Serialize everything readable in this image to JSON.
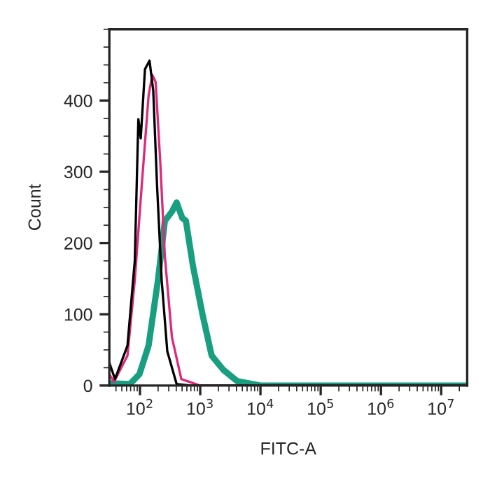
{
  "chart_data": {
    "type": "line",
    "xlabel": "FITC-A",
    "ylabel": "Count",
    "log": "x",
    "grid": false,
    "legend": false,
    "xlim": [
      31,
      27000000
    ],
    "ylim": [
      0,
      500
    ],
    "xticks": [
      {
        "value": 100,
        "label": "10$^{2}$"
      },
      {
        "value": 1000,
        "label": "10$^{3}$"
      },
      {
        "value": 10000,
        "label": "10$^{4}$"
      },
      {
        "value": 100000,
        "label": "10$^{5}$"
      },
      {
        "value": 1000000,
        "label": "10$^{6}$"
      },
      {
        "value": 10000000,
        "label": "10$^{7}$"
      }
    ],
    "yticks": [
      0,
      100,
      200,
      300,
      400
    ],
    "series": [
      {
        "color": "#1a9e80",
        "x": [
          31,
          68,
          98,
          139,
          199,
          259,
          339,
          406,
          504,
          579,
          757,
          1084,
          1549,
          2419,
          4130,
          10000,
          27000000
        ],
        "values": [
          3,
          2,
          16,
          56,
          148,
          231,
          244,
          257,
          235,
          231,
          168,
          101,
          42,
          22,
          6,
          0,
          0
        ]
      },
      {
        "color": "#e0287a",
        "x": [
          31,
          37,
          62,
          82,
          107,
          139,
          160,
          182,
          217,
          259,
          339,
          485,
          990,
          27000000
        ],
        "values": [
          16,
          5,
          42,
          148,
          281,
          407,
          436,
          426,
          314,
          181,
          68,
          9,
          0,
          0
        ]
      },
      {
        "color": "#000000",
        "x": [
          31,
          38.5,
          62,
          82,
          94,
          103,
          121,
          144,
          166,
          192,
          229,
          284,
          406,
          695,
          27000000
        ],
        "values": [
          32,
          9,
          56,
          175,
          374,
          347,
          444,
          456,
          414,
          281,
          148,
          48,
          2,
          0,
          0
        ]
      }
    ]
  }
}
